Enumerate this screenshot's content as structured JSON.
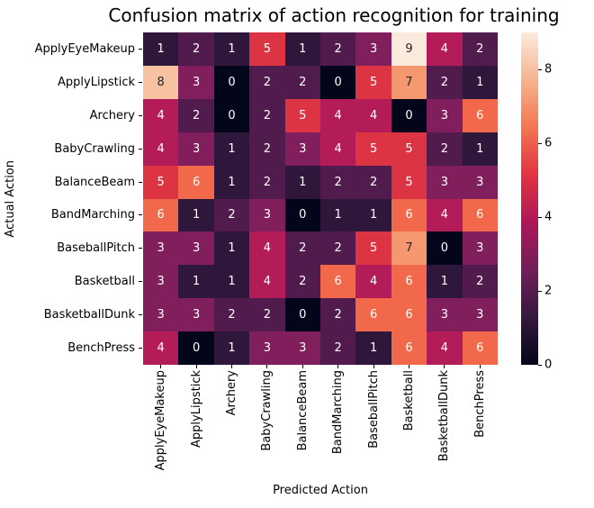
{
  "chart_data": {
    "type": "heatmap",
    "title": "Confusion matrix of action recognition for training",
    "xlabel": "Predicted Action",
    "ylabel": "Actual Action",
    "categories": [
      "ApplyEyeMakeup",
      "ApplyLipstick",
      "Archery",
      "BabyCrawling",
      "BalanceBeam",
      "BandMarching",
      "BaseballPitch",
      "Basketball",
      "BasketballDunk",
      "BenchPress"
    ],
    "matrix": [
      [
        1,
        2,
        1,
        5,
        1,
        2,
        3,
        9,
        4,
        2
      ],
      [
        8,
        3,
        0,
        2,
        2,
        0,
        5,
        7,
        2,
        1
      ],
      [
        4,
        2,
        0,
        2,
        5,
        4,
        4,
        0,
        3,
        6
      ],
      [
        4,
        3,
        1,
        2,
        3,
        4,
        5,
        5,
        2,
        1
      ],
      [
        5,
        6,
        1,
        2,
        1,
        2,
        2,
        5,
        3,
        3
      ],
      [
        6,
        1,
        2,
        3,
        0,
        1,
        1,
        6,
        4,
        6
      ],
      [
        3,
        3,
        1,
        4,
        2,
        2,
        5,
        7,
        0,
        3
      ],
      [
        3,
        1,
        1,
        4,
        2,
        6,
        4,
        6,
        1,
        2
      ],
      [
        3,
        3,
        2,
        2,
        0,
        2,
        6,
        6,
        3,
        3
      ],
      [
        4,
        0,
        1,
        3,
        3,
        2,
        1,
        6,
        4,
        6
      ]
    ],
    "vmin": 0,
    "vmax": 9,
    "colormap": "rocket",
    "value_colors": [
      "#03051A",
      "#2F173B",
      "#521B4E",
      "#801F5C",
      "#B31B59",
      "#DD3444",
      "#F1684A",
      "#F5976F",
      "#F7C2A2",
      "#FAEBDD"
    ],
    "colorbar_gradient": [
      "#03051A",
      "#35193E",
      "#701F57",
      "#AD1759",
      "#E13342",
      "#F37651",
      "#F6B48F",
      "#FAEBDD"
    ],
    "colorbar_ticks": [
      "0",
      "2",
      "4",
      "6",
      "8"
    ],
    "annot_light_color": "#FFFFFF",
    "annot_dark_color": "#262626",
    "annot_dark_from_value": 7,
    "grid": false,
    "legend_position": "right-colorbar"
  }
}
